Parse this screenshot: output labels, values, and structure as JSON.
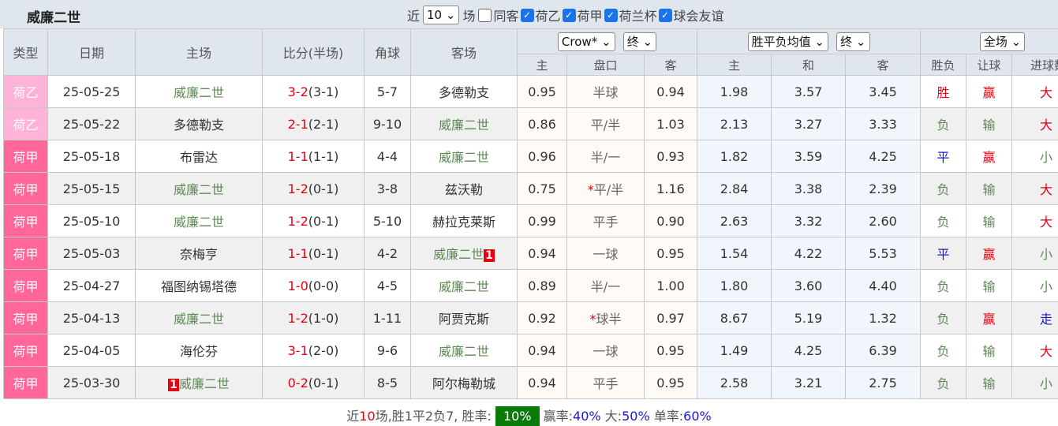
{
  "header": {
    "title": "威廉二世",
    "recent_label": "近",
    "recent_count": "10",
    "games_label": "场",
    "filters": [
      {
        "label": "同客",
        "checked": false
      },
      {
        "label": "荷乙",
        "checked": true
      },
      {
        "label": "荷甲",
        "checked": true
      },
      {
        "label": "荷兰杯",
        "checked": true
      },
      {
        "label": "球会友谊",
        "checked": true
      }
    ]
  },
  "columns": {
    "type": "类型",
    "date": "日期",
    "home": "主场",
    "score": "比分(半场)",
    "corners": "角球",
    "away": "客场",
    "handicap_company": "Crow*",
    "handicap_time": "终",
    "avg_select": "胜平负均值",
    "avg_time": "终",
    "period_select": "全场",
    "sub": [
      "主",
      "盘口",
      "客",
      "主",
      "和",
      "客",
      "胜负",
      "让球",
      "进球数"
    ]
  },
  "colors": {
    "荷乙": "#ffb3d6",
    "荷甲": "#ff6699",
    "team": "#5e8a55"
  },
  "rows": [
    {
      "type": "荷乙",
      "date": "25-05-25",
      "home": "威廉二世",
      "home_card": "",
      "score": "3-2",
      "half": "(3-1)",
      "corners": "5-7",
      "away": "多德勒支",
      "away_card": "",
      "c_home": "0.95",
      "hcap": "半球",
      "star": "",
      "c_away": "0.94",
      "a_home": "1.98",
      "a_draw": "3.57",
      "a_away": "3.45",
      "res": "胜",
      "hres": "赢",
      "gres": "大"
    },
    {
      "type": "荷乙",
      "date": "25-05-22",
      "home": "多德勒支",
      "home_card": "",
      "score": "2-1",
      "half": "(2-1)",
      "corners": "9-10",
      "away": "威廉二世",
      "away_card": "",
      "c_home": "0.86",
      "hcap": "平/半",
      "star": "",
      "c_away": "1.03",
      "a_home": "2.13",
      "a_draw": "3.27",
      "a_away": "3.33",
      "res": "负",
      "hres": "输",
      "gres": "大"
    },
    {
      "type": "荷甲",
      "date": "25-05-18",
      "home": "布雷达",
      "home_card": "",
      "score": "1-1",
      "half": "(1-1)",
      "corners": "4-4",
      "away": "威廉二世",
      "away_card": "",
      "c_home": "0.96",
      "hcap": "半/一",
      "star": "",
      "c_away": "0.93",
      "a_home": "1.82",
      "a_draw": "3.59",
      "a_away": "4.25",
      "res": "平",
      "hres": "赢",
      "gres": "小"
    },
    {
      "type": "荷甲",
      "date": "25-05-15",
      "home": "威廉二世",
      "home_card": "",
      "score": "1-2",
      "half": "(0-1)",
      "corners": "3-8",
      "away": "兹沃勒",
      "away_card": "",
      "c_home": "0.75",
      "hcap": "平/半",
      "star": "*",
      "c_away": "1.16",
      "a_home": "2.84",
      "a_draw": "3.38",
      "a_away": "2.39",
      "res": "负",
      "hres": "输",
      "gres": "大"
    },
    {
      "type": "荷甲",
      "date": "25-05-10",
      "home": "威廉二世",
      "home_card": "",
      "score": "1-2",
      "half": "(0-1)",
      "corners": "5-10",
      "away": "赫拉克莱斯",
      "away_card": "",
      "c_home": "0.99",
      "hcap": "平手",
      "star": "",
      "c_away": "0.90",
      "a_home": "2.63",
      "a_draw": "3.32",
      "a_away": "2.60",
      "res": "负",
      "hres": "输",
      "gres": "大"
    },
    {
      "type": "荷甲",
      "date": "25-05-03",
      "home": "奈梅亨",
      "home_card": "",
      "score": "1-1",
      "half": "(0-1)",
      "corners": "4-2",
      "away": "威廉二世",
      "away_card": "1",
      "c_home": "0.94",
      "hcap": "一球",
      "star": "",
      "c_away": "0.95",
      "a_home": "1.54",
      "a_draw": "4.22",
      "a_away": "5.53",
      "res": "平",
      "hres": "赢",
      "gres": "小"
    },
    {
      "type": "荷甲",
      "date": "25-04-27",
      "home": "福图纳锡塔德",
      "home_card": "",
      "score": "1-0",
      "half": "(0-0)",
      "corners": "4-5",
      "away": "威廉二世",
      "away_card": "",
      "c_home": "0.89",
      "hcap": "半/一",
      "star": "",
      "c_away": "1.00",
      "a_home": "1.80",
      "a_draw": "3.60",
      "a_away": "4.40",
      "res": "负",
      "hres": "输",
      "gres": "小"
    },
    {
      "type": "荷甲",
      "date": "25-04-13",
      "home": "威廉二世",
      "home_card": "",
      "score": "1-2",
      "half": "(1-0)",
      "corners": "1-11",
      "away": "阿贾克斯",
      "away_card": "",
      "c_home": "0.92",
      "hcap": "球半",
      "star": "*",
      "c_away": "0.97",
      "a_home": "8.67",
      "a_draw": "5.19",
      "a_away": "1.32",
      "res": "负",
      "hres": "赢",
      "gres": "走"
    },
    {
      "type": "荷甲",
      "date": "25-04-05",
      "home": "海伦芬",
      "home_card": "",
      "score": "3-1",
      "half": "(2-0)",
      "corners": "9-6",
      "away": "威廉二世",
      "away_card": "",
      "c_home": "0.94",
      "hcap": "一球",
      "star": "",
      "c_away": "0.95",
      "a_home": "1.49",
      "a_draw": "4.25",
      "a_away": "6.39",
      "res": "负",
      "hres": "输",
      "gres": "大"
    },
    {
      "type": "荷甲",
      "date": "25-03-30",
      "home": "威廉二世",
      "home_card": "1",
      "score": "0-2",
      "half": "(0-1)",
      "corners": "8-5",
      "away": "阿尔梅勒城",
      "away_card": "",
      "c_home": "0.94",
      "hcap": "平手",
      "star": "",
      "c_away": "0.95",
      "a_home": "2.58",
      "a_draw": "3.21",
      "a_away": "2.75",
      "res": "负",
      "hres": "输",
      "gres": "小"
    }
  ],
  "footer": {
    "p1": "近",
    "count": "10",
    "p2": "场,胜1平2负7, 胜率:",
    "win_rate": "10%",
    "win_label": "赢率:",
    "win_pct": "40%",
    "big_label": "大:",
    "big_pct": "50%",
    "odd_label": "单率:",
    "odd_pct": "60%"
  }
}
